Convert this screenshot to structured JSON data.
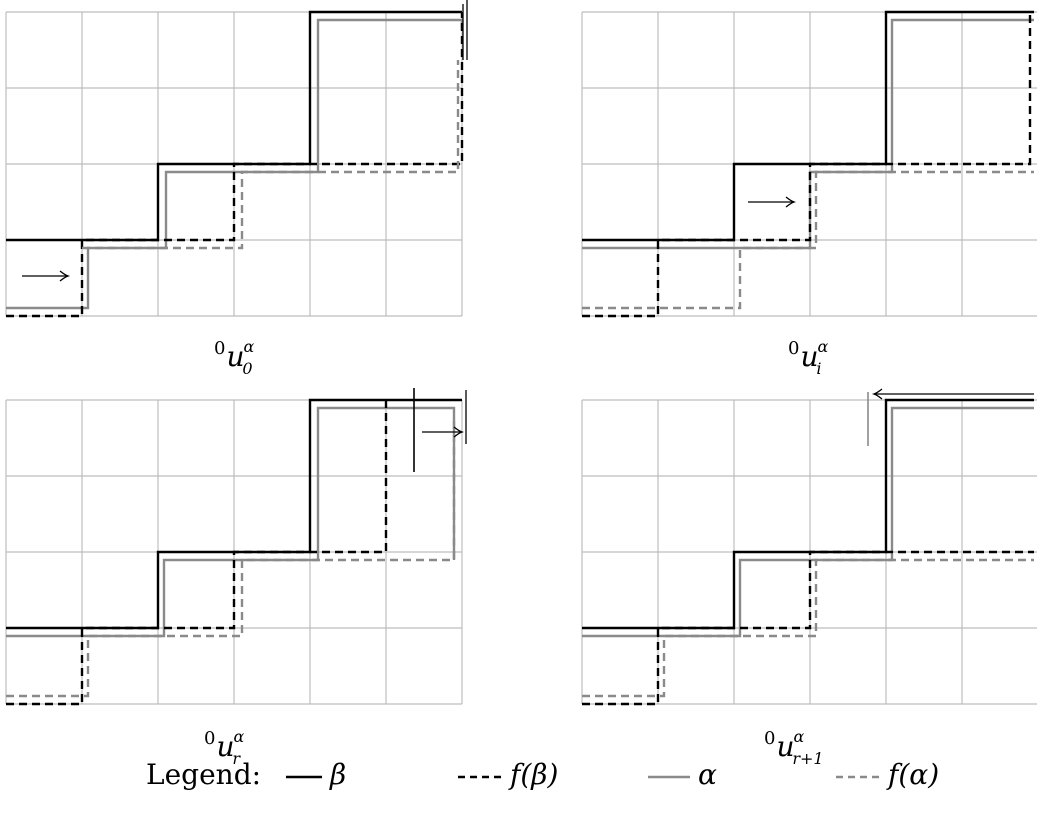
{
  "panels": [
    {
      "id": "p1",
      "caption": {
        "sup": "0",
        "base": "u",
        "super": "α",
        "sub": "0"
      },
      "arrow_dir": "right"
    },
    {
      "id": "p2",
      "caption": {
        "sup": "0",
        "base": "u",
        "super": "α",
        "sub": "i"
      },
      "arrow_dir": "right"
    },
    {
      "id": "p3",
      "caption": {
        "sup": "0",
        "base": "u",
        "super": "α",
        "sub": "r"
      },
      "arrow_dir": "right"
    },
    {
      "id": "p4",
      "caption": {
        "sup": "0",
        "base": "u",
        "super": "α",
        "sub": "r+1"
      },
      "arrow_dir": "left"
    }
  ],
  "legend": {
    "label": "Legend:",
    "items": [
      {
        "name": "β",
        "style": "solid-black"
      },
      {
        "name": "f(β)",
        "style": "dashed-black"
      },
      {
        "name": "α",
        "style": "solid-gray"
      },
      {
        "name": "f(α)",
        "style": "dashed-gray"
      }
    ]
  },
  "colors": {
    "grid": "#bdbdbd",
    "beta": "#000000",
    "alpha": "#8a8a8a",
    "f_alpha": "#8a8a8a"
  }
}
